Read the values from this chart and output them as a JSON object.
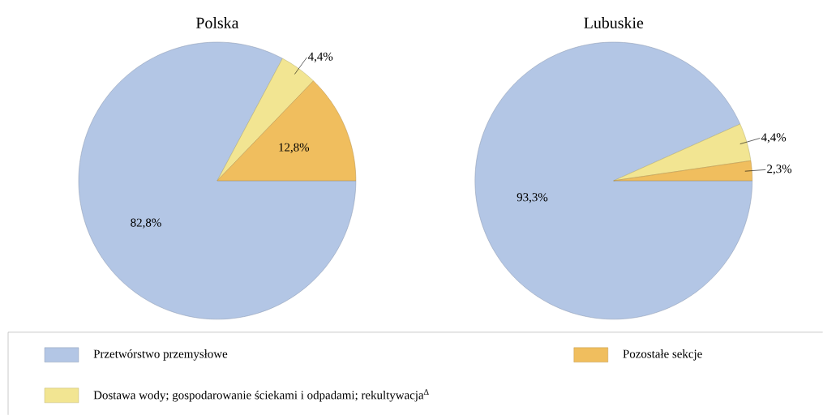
{
  "chart_data": [
    {
      "type": "pie",
      "title": "Polska",
      "categories": [
        "Przetwórstwo przemysłowe",
        "Dostawa wody; gospodarowanie ściekami i odpadami; rekultywacja$^{∆}$",
        "Pozostałe sekcje"
      ],
      "values": [
        82.8,
        4.4,
        12.8
      ],
      "value_labels": [
        "82,8%",
        "4,4%",
        "12,8%"
      ],
      "colors": [
        "#b3c6e5",
        "#f2e592",
        "#f0be5e"
      ],
      "legend": "bottom"
    },
    {
      "type": "pie",
      "title": "Lubuskie",
      "categories": [
        null,
        null,
        null
      ],
      "values": [
        93.3,
        4.4,
        2.3
      ],
      "value_labels": [
        "93,3%",
        "4,4%",
        "2,3%"
      ],
      "colors": [
        "#b3c6e5",
        "#f2e592",
        "#f0be5e"
      ]
    }
  ]
}
